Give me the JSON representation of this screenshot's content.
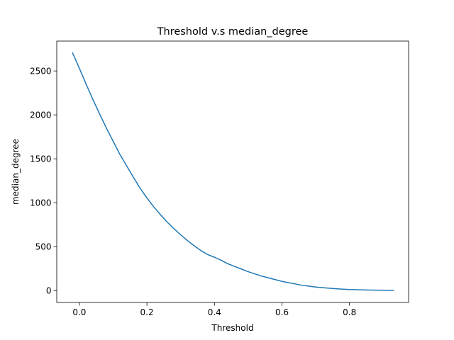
{
  "chart_data": {
    "type": "line",
    "title": "Threshold v.s median_degree",
    "xlabel": "Threshold",
    "ylabel": "median_degree",
    "xlim": [
      -0.067,
      0.975
    ],
    "ylim": [
      -135,
      2840
    ],
    "x_ticks": [
      0.0,
      0.2,
      0.4,
      0.6,
      0.8
    ],
    "x_tick_labels": [
      "0.0",
      "0.2",
      "0.4",
      "0.6",
      "0.8"
    ],
    "y_ticks": [
      0,
      500,
      1000,
      1500,
      2000,
      2500
    ],
    "y_tick_labels": [
      "0",
      "500",
      "1000",
      "1500",
      "2000",
      "2500"
    ],
    "grid": false,
    "series": [
      {
        "color": "#1f77b4",
        "x": [
          -0.02,
          0.0,
          0.02,
          0.04,
          0.06,
          0.08,
          0.1,
          0.12,
          0.14,
          0.16,
          0.18,
          0.2,
          0.22,
          0.24,
          0.26,
          0.28,
          0.3,
          0.32,
          0.34,
          0.36,
          0.38,
          0.4,
          0.42,
          0.44,
          0.46,
          0.48,
          0.5,
          0.52,
          0.54,
          0.56,
          0.58,
          0.6,
          0.62,
          0.64,
          0.66,
          0.68,
          0.7,
          0.72,
          0.74,
          0.76,
          0.78,
          0.8,
          0.82,
          0.84,
          0.86,
          0.88,
          0.9,
          0.93
        ],
        "y": [
          2705,
          2530,
          2350,
          2175,
          2010,
          1850,
          1700,
          1550,
          1420,
          1290,
          1165,
          1055,
          955,
          865,
          780,
          705,
          635,
          570,
          510,
          455,
          410,
          380,
          345,
          305,
          275,
          245,
          215,
          190,
          165,
          145,
          125,
          105,
          90,
          75,
          60,
          50,
          40,
          33,
          27,
          21,
          16,
          12,
          10,
          8,
          6,
          5,
          4,
          3
        ]
      }
    ]
  }
}
